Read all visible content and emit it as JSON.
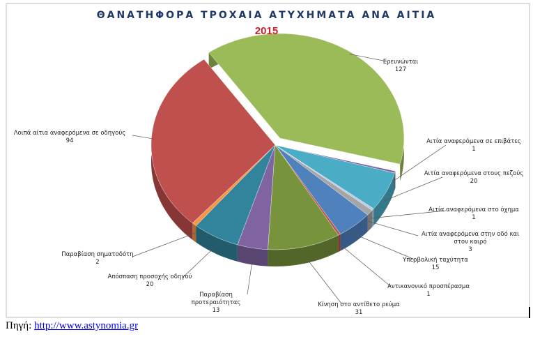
{
  "chart_data": {
    "type": "pie",
    "title": "ΘΑΝΑΤΗΦΟΡΑ ΤΡΟΧΑΙΑ ΑΤΥΧΗΜΑΤΑ ΑΝΑ ΑΙΤΙΑ",
    "subtitle": "2015",
    "categories": [
      "Ερευνώνται",
      "Αιτία αναφερόμενα σε επιβάτες",
      "Αιτία αναφερόμενα στους πεζούς",
      "Αιτία αναφερόμενα στο όχημα",
      "Αιτία αναφερόμενα στην οδό και στον καιρό",
      "Υπερβολική ταχύτητα",
      "Αντικανονικό προσπέρασμα",
      "Κίνηση στο αντίθετο ρεύμα",
      "Παραβίαση προτεραιότητας",
      "Απόσπαση προσοχής οδηγού",
      "Παραβίαση σηματοδότη",
      "Λοιπά αίτια αναφερόμενα σε οδηγούς"
    ],
    "values": [
      127,
      1,
      20,
      1,
      3,
      15,
      1,
      31,
      13,
      20,
      2,
      94
    ],
    "colors": [
      "#9bbb59",
      "#8064a2",
      "#4bacc6",
      "#b9c9e8",
      "#a5a5a5",
      "#4f81bd",
      "#c0504d",
      "#77933c",
      "#8064a2",
      "#31849b",
      "#f79646",
      "#c0504d"
    ]
  },
  "source": {
    "label": "Πηγή:",
    "link": "http://www.astynomia.gr"
  }
}
